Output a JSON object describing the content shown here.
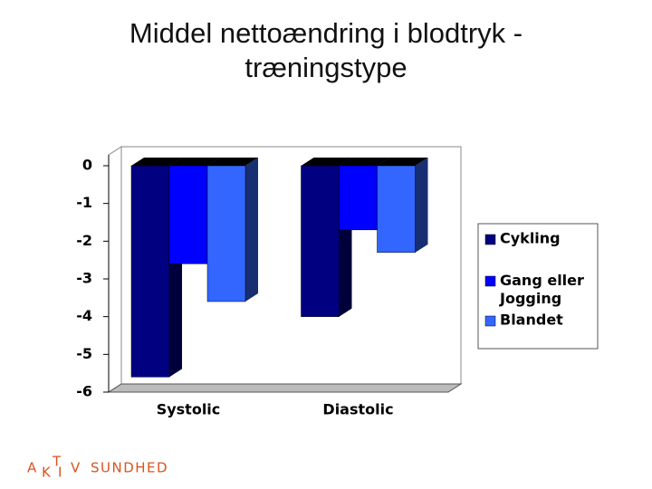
{
  "chart_data": {
    "type": "bar",
    "title": "Middel nettoændring i blodtryk - træningstype",
    "categories": [
      "Systolic",
      "Diastolic"
    ],
    "series": [
      {
        "name": "Cykling",
        "color": "#000080",
        "values": [
          -5.6,
          -4.0
        ]
      },
      {
        "name": "Gang eller Jogging",
        "color": "#0000ff",
        "values": [
          -2.6,
          -1.7
        ]
      },
      {
        "name": "Blandet",
        "color": "#3366ff",
        "values": [
          -3.6,
          -2.3
        ]
      }
    ],
    "ylim": [
      -6,
      0
    ],
    "yticks": [
      0,
      -1,
      -2,
      -3,
      -4,
      -5,
      -6
    ],
    "legend": "right"
  },
  "logo": {
    "letters": [
      "A",
      "K",
      "T",
      "I",
      "V"
    ],
    "word": "SUNDHED"
  }
}
